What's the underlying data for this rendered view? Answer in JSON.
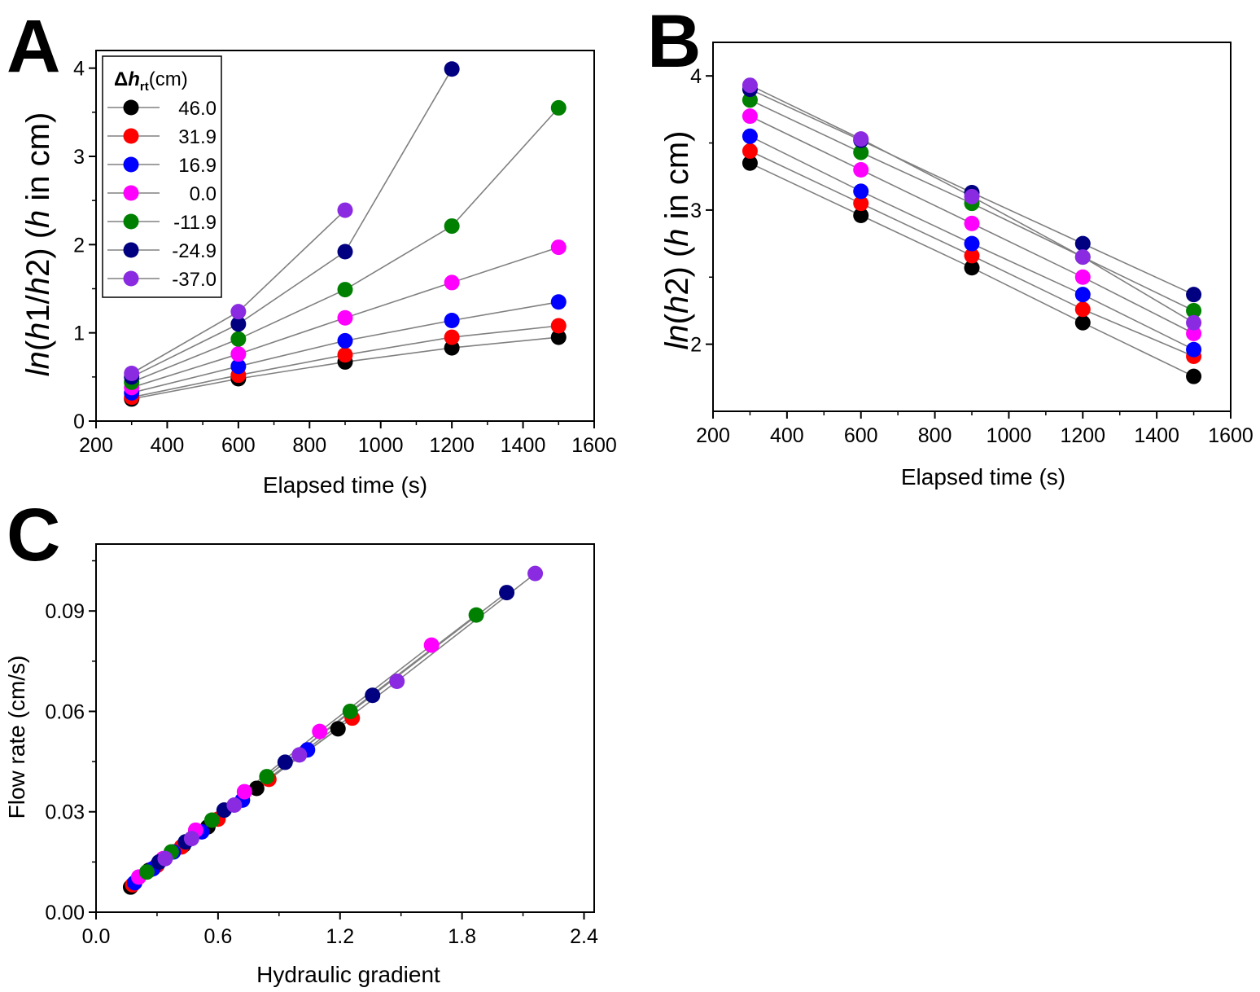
{
  "figure": {
    "series": [
      {
        "label": "46.0",
        "color": "#000000"
      },
      {
        "label": "31.9",
        "color": "#ff0000"
      },
      {
        "label": "16.9",
        "color": "#0000ff"
      },
      {
        "label": "0.0",
        "color": "#ff00ff"
      },
      {
        "label": "-11.9",
        "color": "#008000"
      },
      {
        "label": "-24.9",
        "color": "#000080"
      },
      {
        "label": "-37.0",
        "color": "#8a2be2"
      }
    ]
  },
  "chart_data": [
    {
      "panel": "A",
      "type": "line",
      "xlabel": "Elapsed time (s)",
      "ylabel_parts": {
        "fn": "ln",
        "left": "(",
        "a": "h",
        "mid": "1/",
        "b": "h",
        "end": "2) (",
        "c": "h",
        "tail": " in cm)"
      },
      "xlim": [
        200,
        1600
      ],
      "ylim": [
        0,
        4.2
      ],
      "xticks": [
        200,
        400,
        600,
        800,
        1000,
        1200,
        1400,
        1600
      ],
      "yticks": [
        0,
        1,
        2,
        3,
        4
      ],
      "legend": {
        "title_symbol": "Δ",
        "title_var": "h",
        "title_sub": "rt",
        "title_unit": "(cm)",
        "position": "top-left"
      },
      "series": [
        {
          "name": "46.0",
          "x": [
            300,
            600,
            900,
            1200,
            1500
          ],
          "y": [
            0.25,
            0.48,
            0.67,
            0.83,
            0.95
          ]
        },
        {
          "name": "31.9",
          "x": [
            300,
            600,
            900,
            1200,
            1500
          ],
          "y": [
            0.27,
            0.52,
            0.75,
            0.95,
            1.08
          ]
        },
        {
          "name": "16.9",
          "x": [
            300,
            600,
            900,
            1200,
            1500
          ],
          "y": [
            0.32,
            0.62,
            0.91,
            1.14,
            1.35
          ]
        },
        {
          "name": "0.0",
          "x": [
            300,
            600,
            900,
            1200,
            1500
          ],
          "y": [
            0.38,
            0.76,
            1.17,
            1.57,
            1.97
          ]
        },
        {
          "name": "-11.9",
          "x": [
            300,
            600,
            900,
            1200,
            1500
          ],
          "y": [
            0.44,
            0.93,
            1.49,
            2.21,
            3.55
          ]
        },
        {
          "name": "-24.9",
          "x": [
            300,
            600,
            900,
            1200
          ],
          "y": [
            0.5,
            1.1,
            1.92,
            3.99
          ]
        },
        {
          "name": "-37.0",
          "x": [
            300,
            600,
            900
          ],
          "y": [
            0.54,
            1.24,
            2.39
          ]
        }
      ]
    },
    {
      "panel": "B",
      "type": "line",
      "xlabel": "Elapsed time (s)",
      "ylabel_parts": {
        "fn": "ln",
        "left": "(",
        "a": "h",
        "end": "2) (",
        "c": "h",
        "tail": " in cm)"
      },
      "xlim": [
        200,
        1600
      ],
      "ylim": [
        1.5,
        4.25
      ],
      "xticks": [
        200,
        400,
        600,
        800,
        1000,
        1200,
        1400,
        1600
      ],
      "yticks": [
        2,
        3,
        4
      ],
      "series": [
        {
          "name": "46.0",
          "x": [
            300,
            600,
            900,
            1200,
            1500
          ],
          "y": [
            3.35,
            2.96,
            2.57,
            2.16,
            1.76
          ]
        },
        {
          "name": "31.9",
          "x": [
            300,
            600,
            900,
            1200,
            1500
          ],
          "y": [
            3.44,
            3.05,
            2.66,
            2.26,
            1.91
          ]
        },
        {
          "name": "16.9",
          "x": [
            300,
            600,
            900,
            1200,
            1500
          ],
          "y": [
            3.55,
            3.14,
            2.75,
            2.37,
            1.96
          ]
        },
        {
          "name": "0.0",
          "x": [
            300,
            600,
            900,
            1200,
            1500
          ],
          "y": [
            3.7,
            3.3,
            2.9,
            2.5,
            2.08
          ]
        },
        {
          "name": "-11.9",
          "x": [
            300,
            600,
            900,
            1200,
            1500
          ],
          "y": [
            3.82,
            3.43,
            3.05,
            2.65,
            2.25
          ]
        },
        {
          "name": "-24.9",
          "x": [
            300,
            600,
            900,
            1200,
            1500
          ],
          "y": [
            3.9,
            3.52,
            3.13,
            2.75,
            2.37
          ]
        },
        {
          "name": "-37.0",
          "x": [
            300,
            600,
            900,
            1200,
            1500
          ],
          "y": [
            3.93,
            3.53,
            3.1,
            2.65,
            2.16
          ]
        }
      ]
    },
    {
      "panel": "C",
      "type": "scatter",
      "xlabel": "Hydraulic gradient",
      "ylabel": "Flow rate (cm/s)",
      "xlim": [
        0,
        2.45
      ],
      "ylim": [
        0,
        0.11
      ],
      "xticks": [
        "0.0",
        "0.6",
        "1.2",
        "1.8",
        "2.4"
      ],
      "yticks": [
        "0.00",
        "0.03",
        "0.06",
        "0.09"
      ],
      "series": [
        {
          "name": "46.0",
          "x": [
            0.17,
            0.26,
            0.43,
            0.55,
            0.79,
            1.19
          ],
          "y": [
            0.0075,
            0.0125,
            0.02,
            0.0255,
            0.037,
            0.0548
          ]
        },
        {
          "name": "31.9",
          "x": [
            0.18,
            0.3,
            0.42,
            0.6,
            0.85,
            1.26
          ],
          "y": [
            0.0082,
            0.014,
            0.0195,
            0.0278,
            0.0397,
            0.058
          ]
        },
        {
          "name": "16.9",
          "x": [
            0.19,
            0.28,
            0.38,
            0.52,
            0.72,
            1.04
          ],
          "y": [
            0.0088,
            0.013,
            0.018,
            0.024,
            0.0335,
            0.0485
          ]
        },
        {
          "name": "0.0",
          "x": [
            0.21,
            0.33,
            0.49,
            0.73,
            1.1,
            1.65
          ],
          "y": [
            0.0105,
            0.016,
            0.0245,
            0.036,
            0.054,
            0.0798
          ]
        },
        {
          "name": "-11.9",
          "x": [
            0.25,
            0.37,
            0.57,
            0.84,
            1.25,
            1.87
          ],
          "y": [
            0.012,
            0.018,
            0.0275,
            0.0405,
            0.06,
            0.0888
          ]
        },
        {
          "name": "-24.9",
          "x": [
            0.31,
            0.44,
            0.63,
            0.93,
            1.36,
            2.02
          ],
          "y": [
            0.015,
            0.021,
            0.0305,
            0.0448,
            0.0648,
            0.0955
          ]
        },
        {
          "name": "-37.0",
          "x": [
            0.34,
            0.47,
            0.68,
            1.0,
            1.48,
            2.16
          ],
          "y": [
            0.016,
            0.022,
            0.032,
            0.047,
            0.069,
            0.1012
          ]
        }
      ]
    }
  ],
  "panel_letters": [
    "A",
    "B",
    "C"
  ]
}
